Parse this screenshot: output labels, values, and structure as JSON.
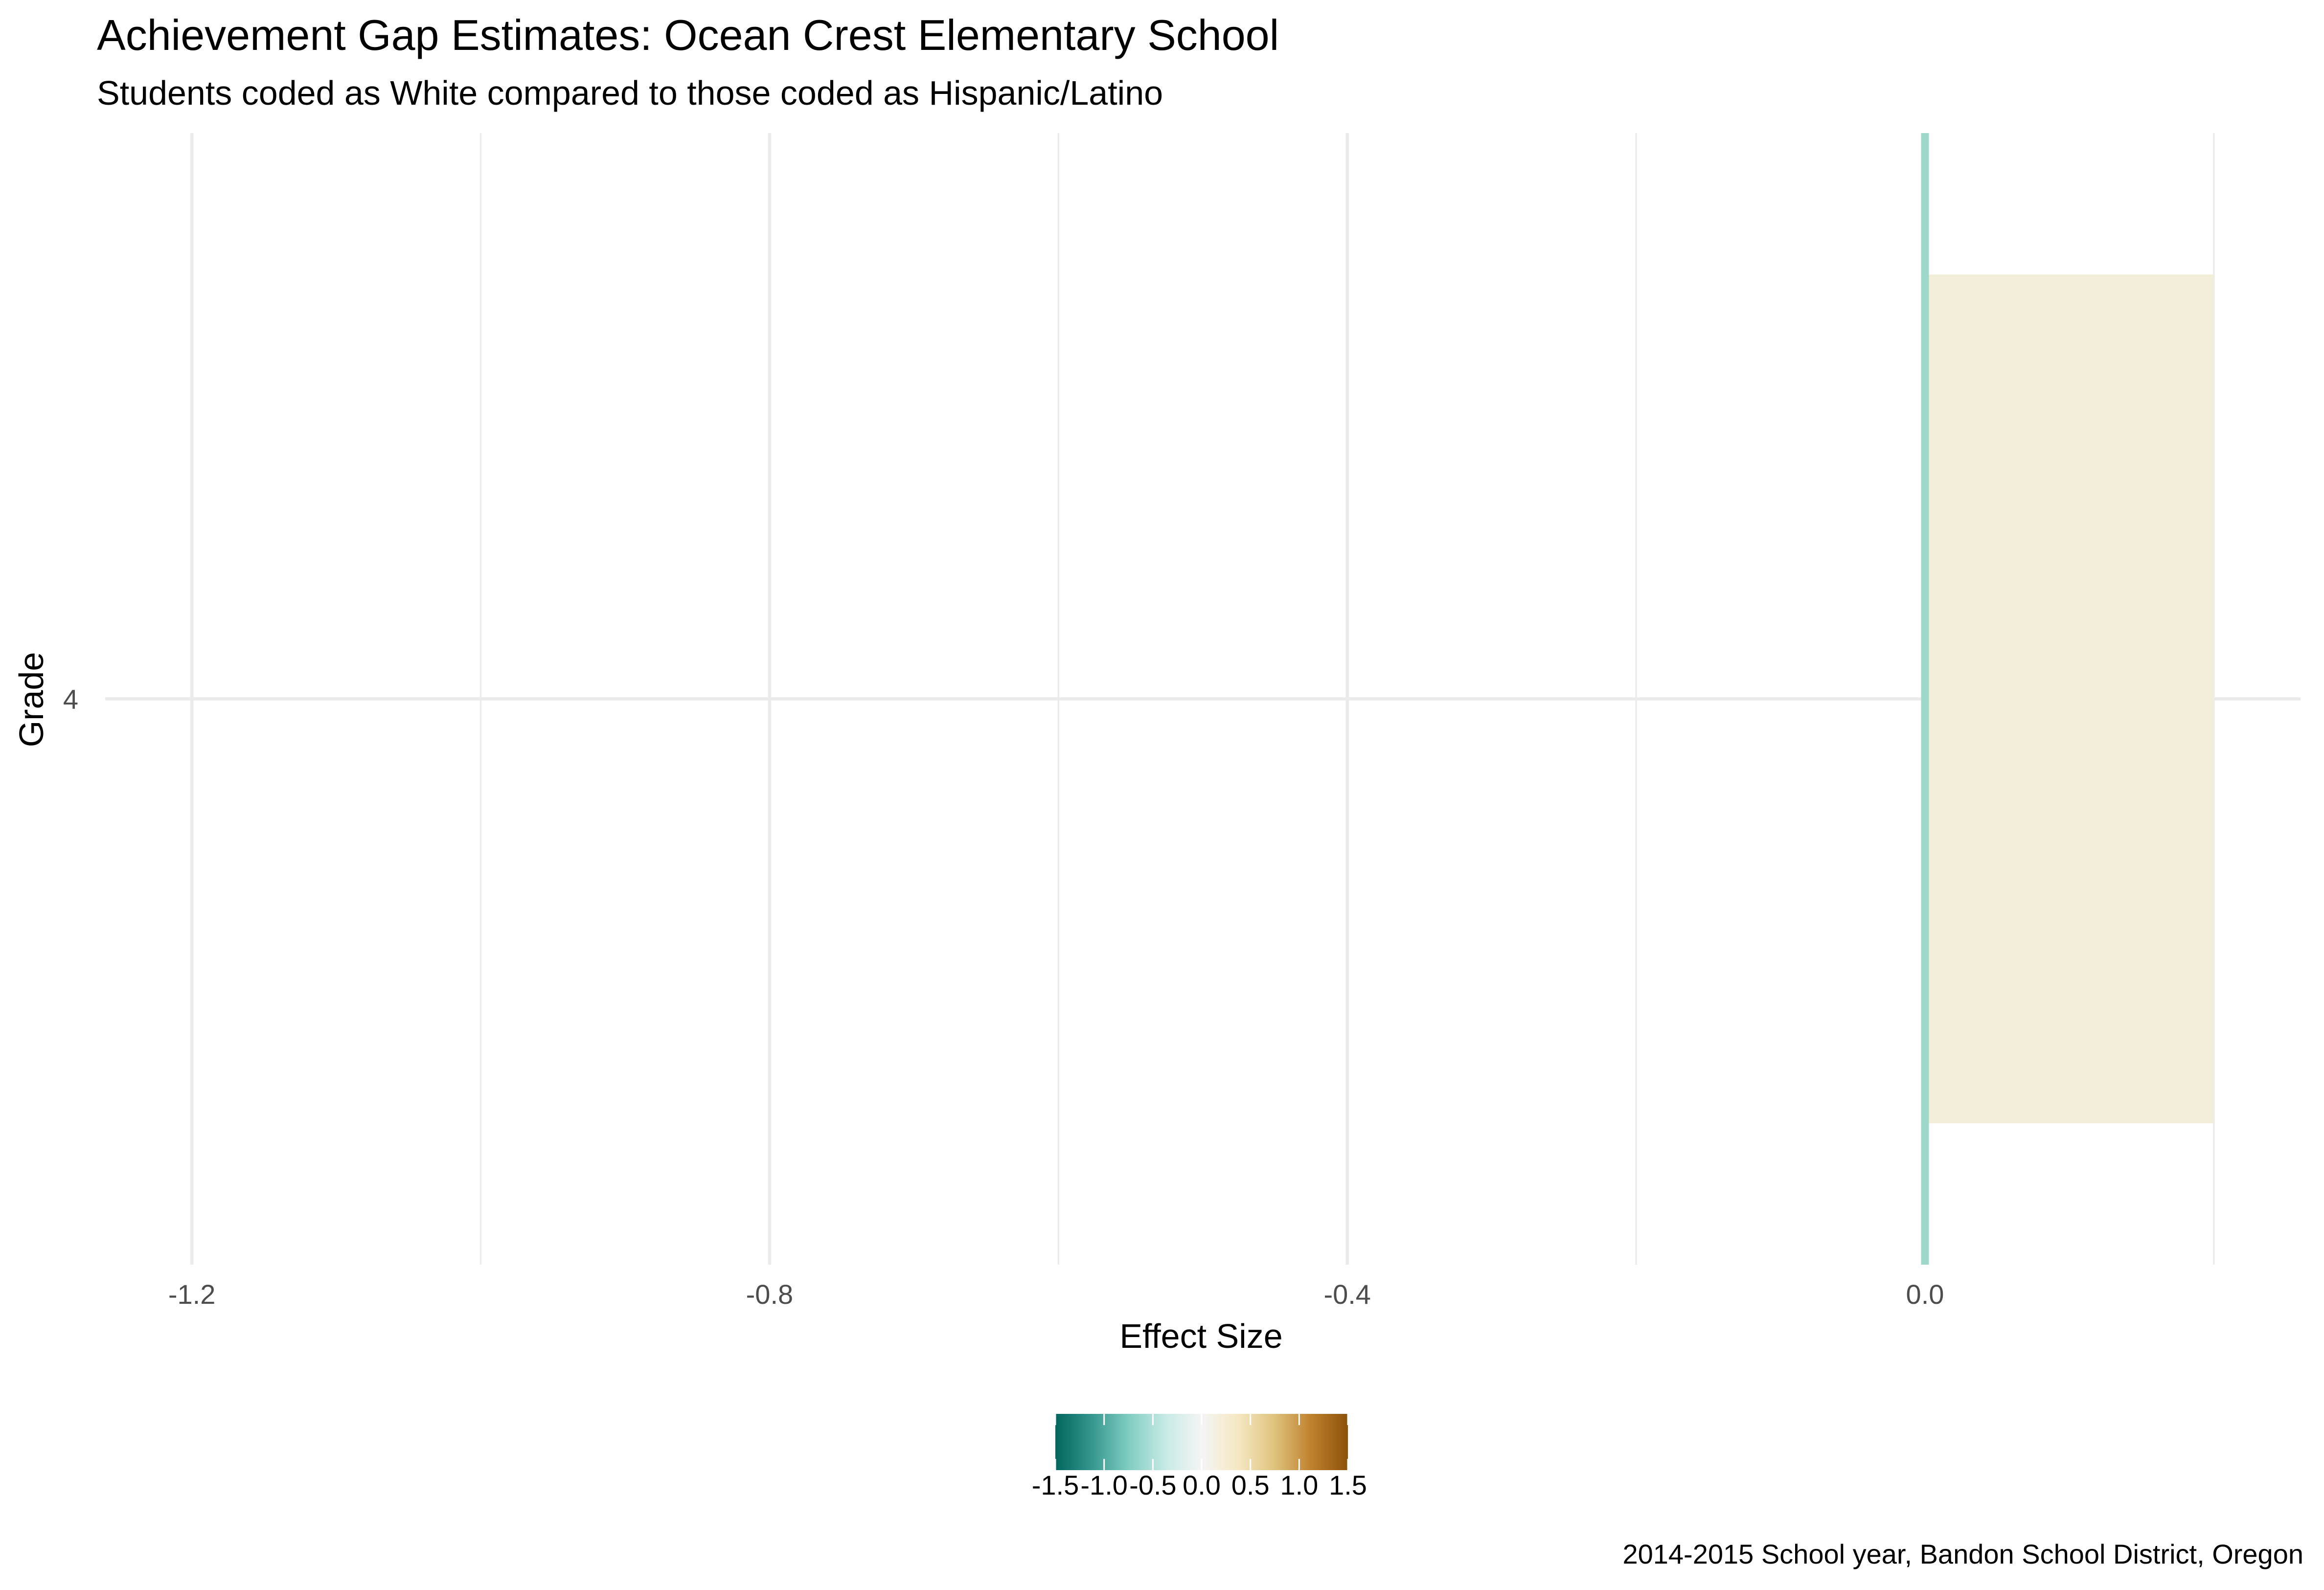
{
  "chart_data": {
    "type": "bar",
    "orientation": "horizontal",
    "title": "Achievement Gap Estimates: Ocean Crest Elementary School",
    "subtitle": "Students coded as White compared to those coded as Hispanic/Latino",
    "xlabel": "Effect Size",
    "ylabel": "Grade",
    "caption": "2014-2015 School year, Bandon School District, Oregon",
    "categories": [
      "4"
    ],
    "values": [
      0.2
    ],
    "xlim": [
      -1.26,
      0.26
    ],
    "x_ticks": [
      -1.2,
      -0.8,
      -0.4,
      0.0
    ],
    "x_tick_labels": [
      "-1.2",
      "-0.8",
      "-0.4",
      "0.0"
    ],
    "x_minor_ticks": [
      -1.0,
      -0.6,
      -0.2,
      0.2
    ],
    "y_tick_labels": [
      "4"
    ],
    "grid": true,
    "reference_line": {
      "x": 0,
      "color": "#9dd8ca"
    },
    "bar_color": "#f3eed9",
    "legend": {
      "position": "bottom",
      "type": "colorbar",
      "range": [
        -1.5,
        1.5
      ],
      "breaks": [
        -1.5,
        -1.0,
        -0.5,
        0.0,
        0.5,
        1.0,
        1.5
      ],
      "labels": [
        "-1.5",
        "-1.0",
        "-0.5",
        "0.0",
        "0.5",
        "1.0",
        "1.5"
      ],
      "colors": [
        "#01665e",
        "#35978f",
        "#80cdc1",
        "#c7eae5",
        "#f5f5f5",
        "#f6e8c3",
        "#dfc27d",
        "#bf812d",
        "#8c510a"
      ]
    }
  }
}
